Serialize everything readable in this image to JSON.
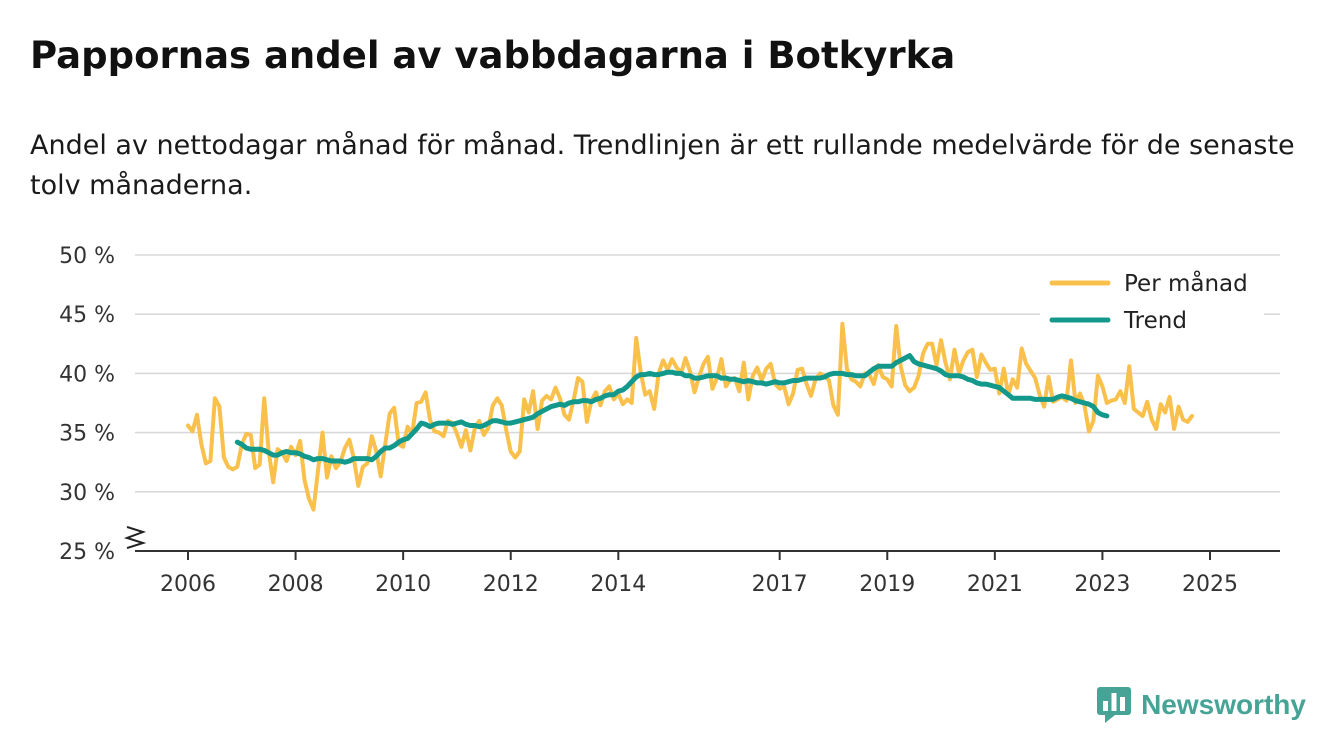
{
  "header": {
    "title": "Pappornas andel av vabbdagarna i Botkyrka",
    "subtitle": "Andel av nettodagar månad för månad. Trendlinjen är ett rullande medelvärde för de senaste tolv månaderna."
  },
  "brand": {
    "name": "Newsworthy",
    "icon": "newsworthy-logo-icon",
    "color": "#46a396"
  },
  "colors": {
    "monthly": "#f9c04c",
    "trend": "#13998b",
    "grid": "#d9d9d9",
    "axis": "#333333"
  },
  "chart_data": {
    "type": "line",
    "title": "Pappornas andel av vabbdagarna i Botkyrka",
    "xlabel": "",
    "ylabel": "",
    "y_unit": " %",
    "ylim": [
      25,
      50
    ],
    "yticks": [
      25,
      30,
      35,
      40,
      45,
      50
    ],
    "y_axis_break": true,
    "xlim": [
      2006.0,
      2025.5
    ],
    "xticks": [
      2006,
      2008,
      2010,
      2012,
      2014,
      2017,
      2019,
      2021,
      2023,
      2025
    ],
    "legend": {
      "position": "top-right",
      "entries": [
        "Per månad",
        "Trend"
      ]
    },
    "series": [
      {
        "name": "Per månad",
        "x_start": 2006.0,
        "step": 0.08333,
        "values": [
          35.6,
          35.1,
          36.5,
          34.0,
          32.4,
          32.6,
          37.9,
          37.2,
          32.9,
          32.1,
          31.9,
          32.1,
          34.0,
          34.9,
          34.8,
          32.0,
          32.3,
          37.9,
          33.4,
          30.8,
          33.6,
          33.3,
          32.6,
          33.8,
          33.1,
          34.3,
          31.0,
          29.4,
          28.5,
          31.8,
          35.0,
          31.2,
          33.0,
          32.0,
          32.5,
          33.7,
          34.4,
          32.8,
          30.5,
          32.1,
          32.4,
          34.7,
          33.4,
          31.3,
          34.0,
          36.6,
          37.1,
          34.0,
          33.8,
          35.5,
          34.9,
          37.5,
          37.6,
          38.4,
          36.1,
          35.1,
          35.0,
          34.7,
          36.0,
          35.8,
          34.9,
          33.8,
          35.2,
          33.5,
          35.4,
          36.0,
          34.8,
          35.4,
          37.3,
          37.9,
          37.3,
          35.2,
          33.4,
          32.9,
          33.4,
          37.8,
          36.7,
          38.5,
          35.3,
          37.7,
          38.1,
          37.8,
          38.8,
          37.9,
          36.5,
          36.1,
          37.7,
          39.6,
          39.3,
          35.9,
          37.7,
          38.4,
          37.3,
          38.5,
          38.9,
          37.8,
          38.3,
          37.4,
          37.8,
          37.5,
          43.0,
          40.1,
          38.2,
          38.5,
          37.0,
          40.0,
          41.1,
          40.3,
          41.2,
          40.5,
          40.0,
          41.3,
          40.2,
          38.4,
          39.7,
          40.8,
          41.4,
          38.7,
          39.6,
          41.2,
          38.9,
          39.5,
          39.6,
          38.5,
          40.9,
          37.8,
          39.8,
          40.5,
          39.4,
          40.4,
          40.8,
          39.1,
          38.7,
          38.9,
          37.4,
          38.3,
          40.3,
          40.4,
          39.1,
          38.1,
          39.5,
          40.0,
          39.8,
          39.4,
          37.3,
          36.5,
          44.2,
          40.4,
          39.5,
          39.3,
          38.9,
          40.0,
          39.9,
          39.1,
          40.7,
          39.7,
          39.5,
          38.9,
          44.0,
          40.6,
          39.0,
          38.5,
          38.8,
          39.8,
          41.7,
          42.5,
          42.5,
          40.7,
          42.8,
          40.9,
          39.5,
          42.0,
          40.0,
          41.1,
          41.8,
          42.0,
          39.7,
          41.6,
          40.9,
          40.3,
          40.4,
          38.3,
          40.4,
          38.2,
          39.5,
          38.8,
          42.1,
          40.8,
          40.2,
          39.6,
          38.2,
          37.2,
          39.7,
          37.6,
          37.8,
          38.0,
          37.7,
          41.1,
          37.5,
          38.3,
          37.3,
          35.1,
          36.0,
          39.8,
          38.9,
          37.5,
          37.7,
          37.8,
          38.5,
          37.5,
          40.6,
          37.0,
          36.7,
          36.4,
          37.6,
          36.1,
          35.3,
          37.4,
          36.7,
          38.0,
          35.3,
          37.2,
          36.1,
          35.9,
          36.4
        ]
      },
      {
        "name": "Trend",
        "x_start": 2006.9167,
        "step": 0.08333,
        "values": [
          34.2,
          34.0,
          33.7,
          33.6,
          33.6,
          33.6,
          33.5,
          33.3,
          33.1,
          33.1,
          33.3,
          33.4,
          33.3,
          33.3,
          33.2,
          33.0,
          32.9,
          32.7,
          32.8,
          32.8,
          32.7,
          32.6,
          32.6,
          32.6,
          32.5,
          32.6,
          32.8,
          32.8,
          32.8,
          32.8,
          32.7,
          33.0,
          33.4,
          33.7,
          33.7,
          33.9,
          34.2,
          34.4,
          34.5,
          34.9,
          35.3,
          35.8,
          35.7,
          35.5,
          35.7,
          35.8,
          35.8,
          35.8,
          35.7,
          35.8,
          35.9,
          35.7,
          35.6,
          35.6,
          35.5,
          35.6,
          35.8,
          36.0,
          36.0,
          35.9,
          35.8,
          35.8,
          35.9,
          36.0,
          36.1,
          36.2,
          36.3,
          36.6,
          36.8,
          37.0,
          37.2,
          37.3,
          37.4,
          37.3,
          37.5,
          37.6,
          37.6,
          37.7,
          37.7,
          37.6,
          37.8,
          37.9,
          38.1,
          38.2,
          38.2,
          38.5,
          38.6,
          38.9,
          39.3,
          39.7,
          39.9,
          39.9,
          40.0,
          39.9,
          39.9,
          40.0,
          40.1,
          40.1,
          40.0,
          40.0,
          39.8,
          39.8,
          39.6,
          39.6,
          39.7,
          39.8,
          39.8,
          39.8,
          39.6,
          39.6,
          39.5,
          39.5,
          39.4,
          39.3,
          39.4,
          39.3,
          39.2,
          39.2,
          39.1,
          39.2,
          39.3,
          39.2,
          39.2,
          39.3,
          39.4,
          39.4,
          39.5,
          39.6,
          39.6,
          39.6,
          39.6,
          39.7,
          39.9,
          40.0,
          40.0,
          40.0,
          39.9,
          39.9,
          39.8,
          39.8,
          39.8,
          40.1,
          40.4,
          40.6,
          40.6,
          40.6,
          40.6,
          40.9,
          41.1,
          41.3,
          41.5,
          41.0,
          40.8,
          40.7,
          40.6,
          40.5,
          40.4,
          40.2,
          39.9,
          39.8,
          39.8,
          39.8,
          39.7,
          39.5,
          39.4,
          39.2,
          39.1,
          39.1,
          39.0,
          38.9,
          38.8,
          38.5,
          38.2,
          37.9,
          37.9,
          37.9,
          37.9,
          37.9,
          37.8,
          37.8,
          37.8,
          37.8,
          37.8,
          38.0,
          38.1,
          38.0,
          37.9,
          37.7,
          37.6,
          37.5,
          37.4,
          37.2,
          36.7,
          36.5,
          36.4
        ]
      }
    ]
  }
}
